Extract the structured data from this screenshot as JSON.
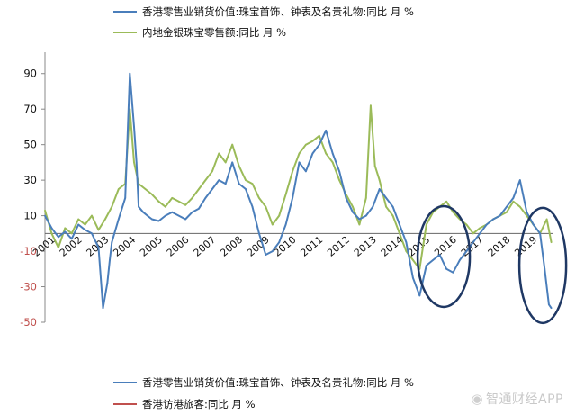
{
  "legend_top": [
    {
      "label": "香港零售业销货价值:珠宝首饰、钟表及名贵礼物:同比  月 %",
      "color": "#4a7ebb"
    },
    {
      "label": "内地金银珠宝零售额:同比  月 %",
      "color": "#9bbb59"
    }
  ],
  "legend_bottom": [
    {
      "label": "香港零售业销货价值:珠宝首饰、钟表及名贵礼物:同比  月 %",
      "color": "#4a7ebb"
    },
    {
      "label": "香港访港旅客:同比  月 %",
      "color": "#c0504d"
    }
  ],
  "watermark": "智通财经APP",
  "chart_data": {
    "type": "line",
    "title": "",
    "xlabel": "",
    "ylabel": "",
    "ylim": [
      -50,
      100
    ],
    "yticks": [
      90,
      70,
      50,
      30,
      10,
      -10,
      -30,
      -50
    ],
    "ytick_color_negative": "#c0504d",
    "xlim": [
      2001.0,
      2020.0
    ],
    "x_tick_labels": [
      "2001",
      "2002",
      "2003",
      "2004",
      "2005",
      "2006",
      "2007",
      "2008",
      "2009",
      "2010",
      "2011",
      "2012",
      "2013",
      "2014",
      "2015",
      "2016",
      "2017",
      "2018",
      "2019"
    ],
    "grid": false,
    "legend": "top",
    "series": [
      {
        "name": "香港零售业销货价值:珠宝首饰、钟表及名贵礼物:同比  月 %",
        "color": "#4a7ebb",
        "x": [
          2001.0,
          2001.25,
          2001.5,
          2001.75,
          2002.0,
          2002.25,
          2002.5,
          2002.75,
          2003.0,
          2003.17,
          2003.33,
          2003.42,
          2003.5,
          2003.75,
          2004.0,
          2004.17,
          2004.33,
          2004.42,
          2004.5,
          2004.67,
          2004.83,
          2005.0,
          2005.25,
          2005.5,
          2005.75,
          2006.0,
          2006.25,
          2006.5,
          2006.75,
          2007.0,
          2007.25,
          2007.5,
          2007.75,
          2008.0,
          2008.25,
          2008.5,
          2008.75,
          2009.0,
          2009.25,
          2009.5,
          2009.75,
          2010.0,
          2010.25,
          2010.5,
          2010.75,
          2011.0,
          2011.25,
          2011.5,
          2011.75,
          2012.0,
          2012.25,
          2012.5,
          2012.75,
          2013.0,
          2013.25,
          2013.5,
          2013.75,
          2014.0,
          2014.25,
          2014.5,
          2014.75,
          2015.0,
          2015.25,
          2015.5,
          2015.75,
          2016.0,
          2016.25,
          2016.5,
          2016.75,
          2017.0,
          2017.25,
          2017.5,
          2017.75,
          2018.0,
          2018.25,
          2018.5,
          2018.75,
          2019.0,
          2019.25,
          2019.5,
          2019.67,
          2019.83,
          2019.92
        ],
        "values": [
          10,
          3,
          -2,
          1,
          -3,
          5,
          2,
          0,
          -8,
          -42,
          -28,
          -15,
          -5,
          8,
          20,
          90,
          60,
          40,
          15,
          12,
          10,
          8,
          7,
          10,
          12,
          10,
          8,
          12,
          14,
          20,
          25,
          30,
          28,
          40,
          28,
          25,
          15,
          0,
          -12,
          -10,
          -5,
          5,
          20,
          40,
          35,
          45,
          50,
          58,
          45,
          35,
          20,
          12,
          8,
          10,
          15,
          25,
          20,
          15,
          5,
          -5,
          -25,
          -35,
          -18,
          -15,
          -12,
          -20,
          -22,
          -15,
          -10,
          -5,
          0,
          5,
          8,
          10,
          15,
          20,
          30,
          12,
          5,
          0,
          -20,
          -40,
          -42
        ]
      },
      {
        "name": "内地金银珠宝零售额:同比  月 %",
        "color": "#9bbb59",
        "x": [
          2001.0,
          2001.25,
          2001.5,
          2001.75,
          2002.0,
          2002.25,
          2002.5,
          2002.75,
          2003.0,
          2003.25,
          2003.5,
          2003.75,
          2004.0,
          2004.17,
          2004.33,
          2004.5,
          2004.75,
          2005.0,
          2005.25,
          2005.5,
          2005.75,
          2006.0,
          2006.25,
          2006.5,
          2006.75,
          2007.0,
          2007.25,
          2007.5,
          2007.75,
          2008.0,
          2008.25,
          2008.5,
          2008.75,
          2009.0,
          2009.25,
          2009.5,
          2009.75,
          2010.0,
          2010.25,
          2010.5,
          2010.75,
          2011.0,
          2011.25,
          2011.5,
          2011.75,
          2012.0,
          2012.25,
          2012.5,
          2012.75,
          2013.0,
          2013.17,
          2013.33,
          2013.5,
          2013.75,
          2014.0,
          2014.25,
          2014.5,
          2014.75,
          2015.0,
          2015.25,
          2015.5,
          2015.75,
          2016.0,
          2016.25,
          2016.5,
          2016.75,
          2017.0,
          2017.25,
          2017.5,
          2017.75,
          2018.0,
          2018.25,
          2018.5,
          2018.75,
          2019.0,
          2019.25,
          2019.5,
          2019.75,
          2019.92
        ],
        "values": [
          13,
          0,
          -8,
          3,
          0,
          8,
          5,
          10,
          2,
          8,
          15,
          25,
          28,
          70,
          40,
          28,
          25,
          22,
          18,
          15,
          20,
          18,
          16,
          20,
          25,
          30,
          35,
          45,
          40,
          50,
          38,
          30,
          28,
          20,
          15,
          5,
          10,
          22,
          35,
          45,
          50,
          52,
          55,
          45,
          40,
          30,
          22,
          15,
          5,
          20,
          72,
          38,
          30,
          15,
          10,
          0,
          -10,
          -15,
          -20,
          5,
          12,
          15,
          18,
          12,
          8,
          5,
          0,
          3,
          5,
          8,
          10,
          12,
          18,
          15,
          10,
          5,
          0,
          8,
          -5
        ]
      }
    ],
    "annotations": [
      {
        "type": "ellipse",
        "center_x": 2015.9,
        "center_y": -13,
        "label": ""
      },
      {
        "type": "ellipse",
        "center_x": 2019.6,
        "center_y": -18,
        "label": ""
      }
    ]
  }
}
